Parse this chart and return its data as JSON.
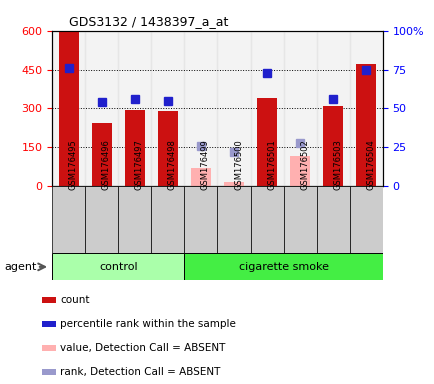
{
  "title": "GDS3132 / 1438397_a_at",
  "samples": [
    "GSM176495",
    "GSM176496",
    "GSM176497",
    "GSM176498",
    "GSM176499",
    "GSM176500",
    "GSM176501",
    "GSM176502",
    "GSM176503",
    "GSM176504"
  ],
  "counts": [
    595,
    245,
    295,
    290,
    null,
    null,
    340,
    null,
    310,
    470
  ],
  "percentile_ranks": [
    76,
    54,
    56,
    55,
    null,
    null,
    73,
    null,
    56,
    75
  ],
  "absent_values": [
    null,
    null,
    null,
    null,
    70,
    18,
    null,
    115,
    null,
    null
  ],
  "absent_ranks": [
    null,
    null,
    null,
    null,
    26,
    22,
    null,
    28,
    null,
    null
  ],
  "left_ylim": [
    0,
    600
  ],
  "right_ylim": [
    0,
    100
  ],
  "left_yticks": [
    0,
    150,
    300,
    450,
    600
  ],
  "right_yticks": [
    0,
    25,
    50,
    75,
    100
  ],
  "right_yticklabels": [
    "0",
    "25",
    "50",
    "75",
    "100%"
  ],
  "bar_color": "#CC1111",
  "absent_bar_color": "#FFB0B0",
  "rank_color": "#2020CC",
  "absent_rank_color": "#9999CC",
  "control_bg": "#AAFFAA",
  "smoke_bg": "#44EE44",
  "legend_items": [
    {
      "label": "count",
      "color": "#CC1111"
    },
    {
      "label": "percentile rank within the sample",
      "color": "#2020CC"
    },
    {
      "label": "value, Detection Call = ABSENT",
      "color": "#FFB0B0"
    },
    {
      "label": "rank, Detection Call = ABSENT",
      "color": "#9999CC"
    }
  ]
}
